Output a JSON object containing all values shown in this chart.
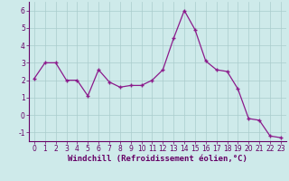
{
  "x": [
    0,
    1,
    2,
    3,
    4,
    5,
    6,
    7,
    8,
    9,
    10,
    11,
    12,
    13,
    14,
    15,
    16,
    17,
    18,
    19,
    20,
    21,
    22,
    23
  ],
  "y": [
    2.1,
    3.0,
    3.0,
    2.0,
    2.0,
    1.1,
    2.6,
    1.9,
    1.6,
    1.7,
    1.7,
    2.0,
    2.6,
    4.4,
    6.0,
    4.9,
    3.1,
    2.6,
    2.5,
    1.5,
    -0.2,
    -0.3,
    -1.2,
    -1.3
  ],
  "line_color": "#8B1A8B",
  "marker": "+",
  "marker_size": 3,
  "linewidth": 0.9,
  "markeredgewidth": 1.0,
  "xlabel": "Windchill (Refroidissement éolien,°C)",
  "xlim": [
    -0.5,
    23.5
  ],
  "ylim": [
    -1.5,
    6.5
  ],
  "yticks": [
    -1,
    0,
    1,
    2,
    3,
    4,
    5,
    6
  ],
  "xticks": [
    0,
    1,
    2,
    3,
    4,
    5,
    6,
    7,
    8,
    9,
    10,
    11,
    12,
    13,
    14,
    15,
    16,
    17,
    18,
    19,
    20,
    21,
    22,
    23
  ],
  "bg_color": "#ceeaea",
  "grid_color": "#aacccc",
  "line_axes_color": "#660066",
  "tick_color": "#660066",
  "tick_fontsize": 5.5,
  "xlabel_fontsize": 6.5
}
